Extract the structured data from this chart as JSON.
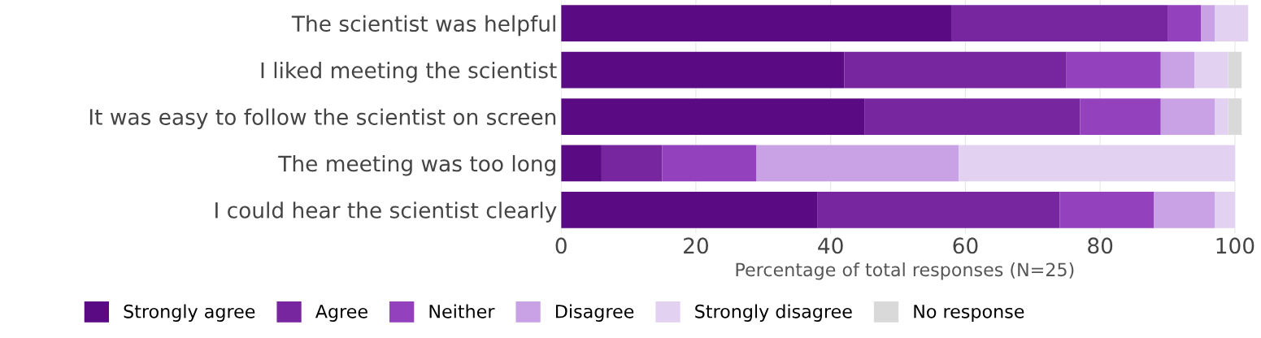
{
  "chart_data": {
    "type": "bar",
    "orientation": "horizontal",
    "stacked": true,
    "categories": [
      "The scientist was helpful",
      "I liked meeting the scientist",
      "It was easy to follow the scientist on screen",
      "The meeting was too long",
      "I could hear the scientist clearly"
    ],
    "series": [
      {
        "name": "Strongly agree",
        "color": "#5a0a82",
        "values": [
          58,
          42,
          45,
          6,
          38
        ]
      },
      {
        "name": "Agree",
        "color": "#7826a0",
        "values": [
          32,
          33,
          32,
          9,
          36
        ]
      },
      {
        "name": "Neither",
        "color": "#9341bc",
        "values": [
          5,
          14,
          12,
          14,
          14
        ]
      },
      {
        "name": "Disagree",
        "color": "#c9a1e5",
        "values": [
          2,
          5,
          8,
          30,
          9
        ]
      },
      {
        "name": "Strongly disagree",
        "color": "#e3d1f1",
        "values": [
          5,
          5,
          2,
          41,
          3
        ]
      },
      {
        "name": "No response",
        "color": "#d9d9d9",
        "values": [
          null,
          2,
          2,
          null,
          null
        ]
      }
    ],
    "xlabel": "Percentage of total responses (N=25)",
    "xlim": [
      0,
      102
    ],
    "xticks": [
      0,
      20,
      40,
      60,
      80,
      100
    ],
    "grid": "x",
    "legend": "bottom"
  }
}
